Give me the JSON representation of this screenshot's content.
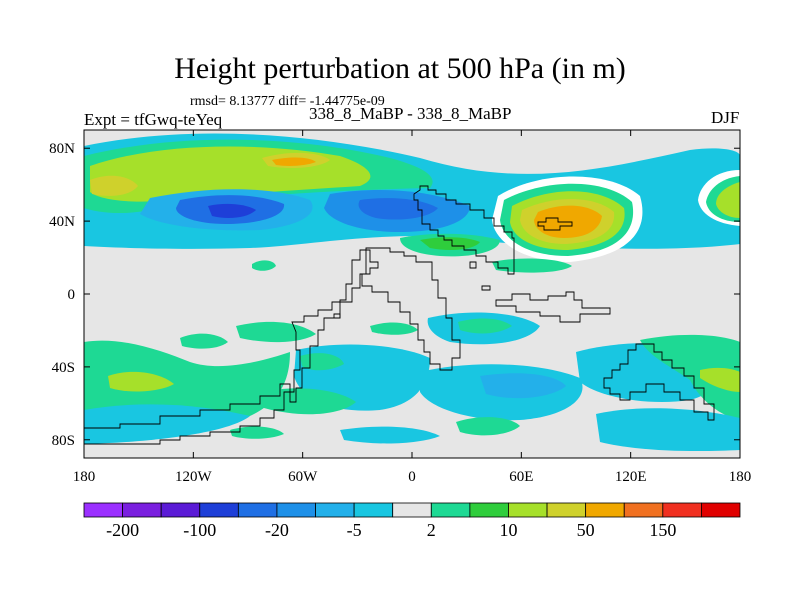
{
  "figure": {
    "title": "Height perturbation at 500 hPa (in m)",
    "stats": "rmsd= 8.13777 diff= -1.44775e-09",
    "experiment": "Expt = tfGwq-teYeq",
    "case_pair": "338_8_MaBP - 338_8_MaBP",
    "season": "DJF"
  },
  "chart_data": {
    "type": "heatmap",
    "title": "Height perturbation at 500 hPa (in m)",
    "subtitle": "rmsd= 8.13777 diff= -1.44775e-09",
    "projection": "cylindrical equidistant",
    "xlim": [
      -180,
      180
    ],
    "ylim": [
      -90,
      90
    ],
    "x_ticks": [
      -180,
      -120,
      -60,
      0,
      60,
      120,
      180
    ],
    "x_tick_labels": [
      "180",
      "120W",
      "60W",
      "0",
      "60E",
      "120E",
      "180"
    ],
    "y_ticks": [
      80,
      40,
      0,
      -40,
      -80
    ],
    "y_tick_labels": [
      "80N",
      "40N",
      "0",
      "40S",
      "80S"
    ],
    "levels": [
      -200,
      -150,
      -100,
      -50,
      -20,
      -10,
      -5,
      -2,
      2,
      5,
      10,
      20,
      50,
      100,
      150,
      200
    ],
    "colorbar_labels": [
      "-200",
      "-100",
      "-20",
      "-5",
      "2",
      "10",
      "50",
      "150"
    ],
    "colorbar_label_levels": [
      -200,
      -100,
      -20,
      -5,
      2,
      10,
      50,
      150
    ],
    "colors": [
      "#9b30ff",
      "#7a1fdf",
      "#5b1bd6",
      "#1e3fd8",
      "#1f6fe4",
      "#1e90e8",
      "#23b0ea",
      "#19c6e1",
      "#e6e6e6",
      "#1ed994",
      "#2fcd3c",
      "#a6e02a",
      "#cfd12c",
      "#f0a800",
      "#f07020",
      "#f03020",
      "#e00000"
    ],
    "fields": [
      {
        "lon": -165,
        "lat": 68,
        "value": 12
      },
      {
        "lon": -120,
        "lat": 70,
        "value": 20
      },
      {
        "lon": -75,
        "lat": 72,
        "value": 60
      },
      {
        "lon": -45,
        "lat": 66,
        "value": 10
      },
      {
        "lon": -90,
        "lat": 38,
        "value": -25
      },
      {
        "lon": -125,
        "lat": 42,
        "value": -8
      },
      {
        "lon": -15,
        "lat": 44,
        "value": -10
      },
      {
        "lon": 25,
        "lat": 33,
        "value": 8
      },
      {
        "lon": 80,
        "lat": 40,
        "value": 120
      },
      {
        "lon": 165,
        "lat": 55,
        "value": 20
      },
      {
        "lon": -155,
        "lat": -42,
        "value": 15
      },
      {
        "lon": -80,
        "lat": -40,
        "value": -4
      },
      {
        "lon": -30,
        "lat": -62,
        "value": 8
      },
      {
        "lon": 20,
        "lat": -48,
        "value": -5
      },
      {
        "lon": 60,
        "lat": -80,
        "value": 6
      },
      {
        "lon": 120,
        "lat": -60,
        "value": -6
      },
      {
        "lon": 150,
        "lat": -45,
        "value": 8
      }
    ]
  },
  "icons": {
    "coastline": "continent-outline",
    "colorbar": "color-scale"
  }
}
